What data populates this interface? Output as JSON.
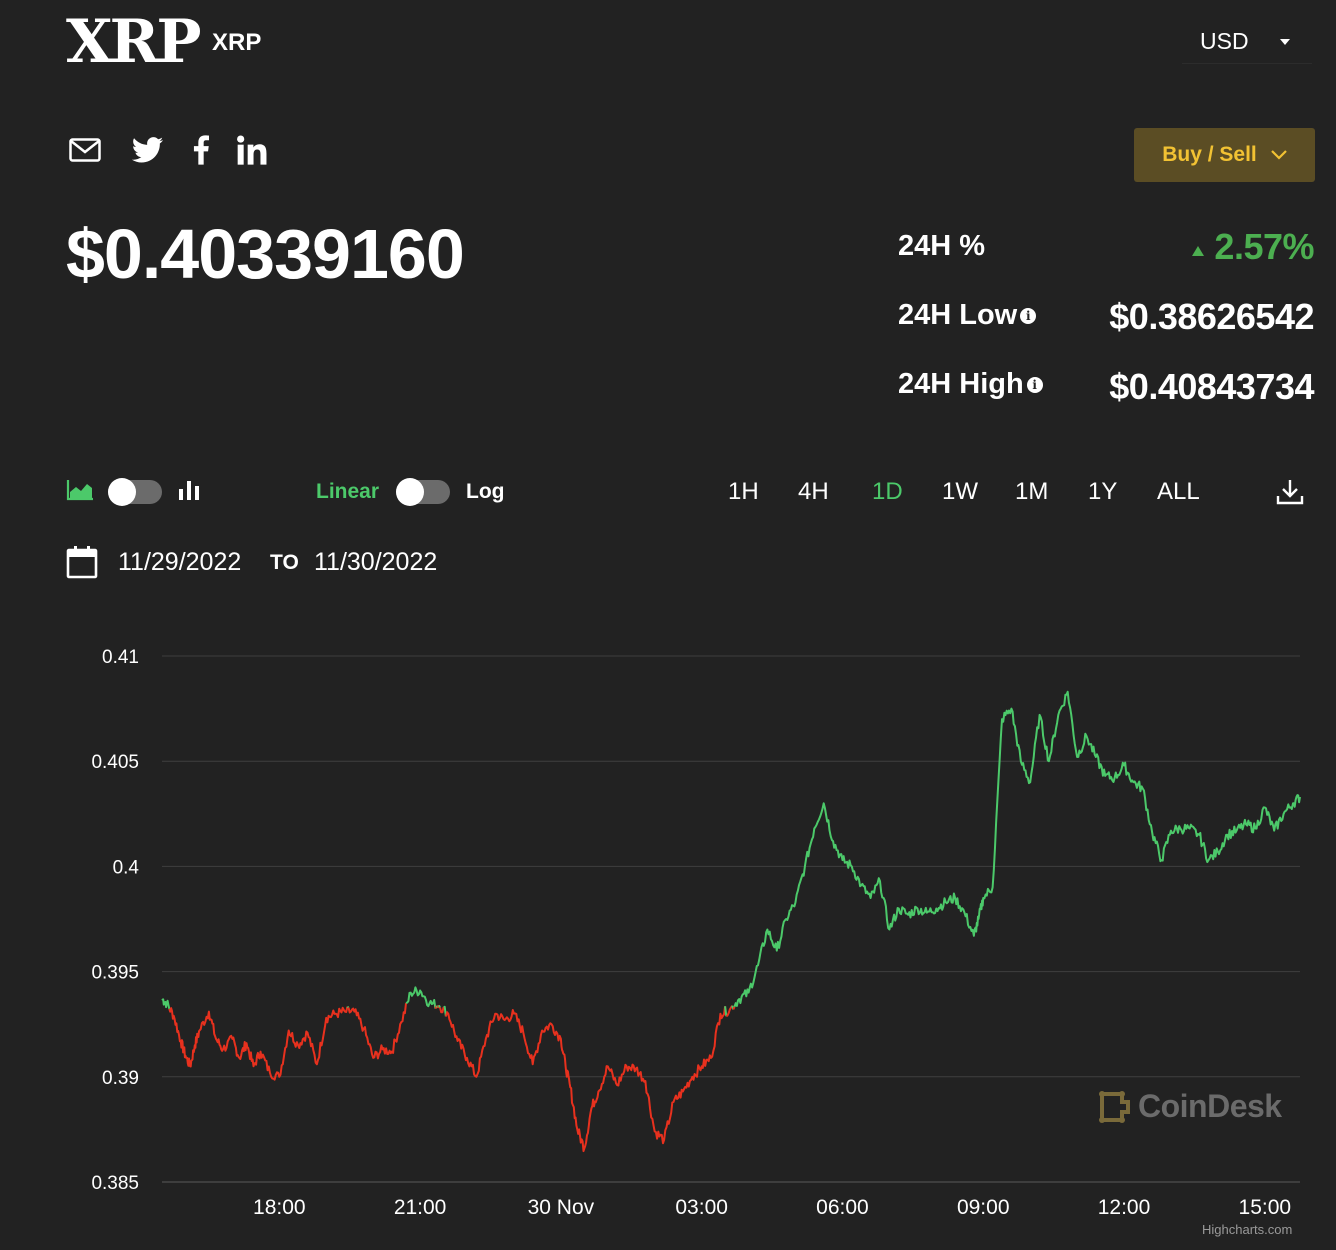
{
  "header": {
    "logo_text": "XRP",
    "asset_name": "XRP",
    "currency": "USD"
  },
  "share": [
    "mail-icon",
    "twitter-icon",
    "facebook-icon",
    "linkedin-icon"
  ],
  "buy_sell_label": "Buy / Sell",
  "price": "$0.40339160",
  "stats": {
    "change_label": "24H %",
    "change_value": "2.57%",
    "low_label": "24H Low",
    "low_value": "$0.38626542",
    "high_label": "24H High",
    "high_value": "$0.40843734"
  },
  "controls": {
    "linear_label": "Linear",
    "log_label": "Log",
    "ranges": [
      "1H",
      "4H",
      "1D",
      "1W",
      "1M",
      "1Y",
      "ALL"
    ],
    "active_range": "1D",
    "date_from": "11/29/2022",
    "date_to_label": "TO",
    "date_to": "11/30/2022"
  },
  "colors": {
    "up": "#4cc96a",
    "down": "#e8311e",
    "accent_gold": "#f2c233"
  },
  "chart_data": {
    "type": "line",
    "title": "",
    "xlabel": "",
    "ylabel": "",
    "y_ticks": [
      "0.41",
      "0.405",
      "0.4",
      "0.395",
      "0.39",
      "0.385"
    ],
    "ylim": [
      0.385,
      0.41
    ],
    "x_ticks": [
      "18:00",
      "21:00",
      "30 Nov",
      "03:00",
      "06:00",
      "09:00",
      "12:00",
      "15:00"
    ],
    "x_tick_hours": [
      18,
      21,
      24,
      27,
      30,
      33,
      36,
      39
    ],
    "xlim_hours": [
      15.5,
      39.75
    ],
    "baseline": 0.3933,
    "grid": true,
    "legend": "none",
    "series": [
      {
        "x_hours": [
          15.5,
          15.6,
          15.75,
          15.9,
          16.0,
          16.1,
          16.2,
          16.3,
          16.5,
          16.65,
          16.8,
          17.0,
          17.15,
          17.3,
          17.45,
          17.6,
          17.8,
          18.0,
          18.2,
          18.4,
          18.6,
          18.8,
          19.0,
          19.2,
          19.4,
          19.6,
          19.8,
          20.0,
          20.2,
          20.4,
          20.6,
          20.8,
          21.0,
          21.2,
          21.4,
          21.6,
          21.8,
          22.0,
          22.2,
          22.4,
          22.6,
          22.8,
          23.0,
          23.2,
          23.4,
          23.6,
          23.8,
          24.0,
          24.1,
          24.2,
          24.35,
          24.5,
          24.65,
          24.8,
          25.0,
          25.2,
          25.4,
          25.6,
          25.8,
          26.0,
          26.2,
          26.4,
          26.6,
          26.8,
          27.0,
          27.2,
          27.4,
          27.6,
          27.8,
          28.0,
          28.2,
          28.4,
          28.6,
          28.8,
          29.0,
          29.2,
          29.4,
          29.6,
          29.8,
          30.0,
          30.2,
          30.4,
          30.6,
          30.8,
          31.0,
          31.2,
          31.4,
          31.6,
          31.8,
          32.0,
          32.2,
          32.4,
          32.6,
          32.8,
          32.9,
          33.0,
          33.2,
          33.4,
          33.6,
          33.8,
          34.0,
          34.2,
          34.4,
          34.6,
          34.8,
          35.0,
          35.2,
          35.4,
          35.6,
          35.8,
          36.0,
          36.2,
          36.4,
          36.6,
          36.8,
          37.0,
          37.2,
          37.4,
          37.6,
          37.8,
          38.0,
          38.2,
          38.4,
          38.6,
          38.8,
          39.0,
          39.2,
          39.4,
          39.6,
          39.75
        ],
        "values": [
          0.3937,
          0.3935,
          0.3929,
          0.3917,
          0.391,
          0.3905,
          0.3915,
          0.3922,
          0.3931,
          0.3918,
          0.3913,
          0.3918,
          0.3909,
          0.3916,
          0.3905,
          0.3912,
          0.3902,
          0.39,
          0.3922,
          0.3915,
          0.3921,
          0.3906,
          0.3928,
          0.393,
          0.3931,
          0.3931,
          0.3923,
          0.3909,
          0.3913,
          0.3912,
          0.3926,
          0.394,
          0.3941,
          0.3935,
          0.3934,
          0.393,
          0.3917,
          0.3909,
          0.39,
          0.3918,
          0.393,
          0.3927,
          0.393,
          0.3921,
          0.3906,
          0.3922,
          0.3925,
          0.3918,
          0.3905,
          0.3895,
          0.3875,
          0.3866,
          0.3885,
          0.3893,
          0.3905,
          0.3896,
          0.3905,
          0.3904,
          0.3898,
          0.3874,
          0.387,
          0.3888,
          0.3893,
          0.39,
          0.3905,
          0.3909,
          0.393,
          0.3932,
          0.3937,
          0.394,
          0.3953,
          0.397,
          0.396,
          0.3975,
          0.3983,
          0.4,
          0.4018,
          0.403,
          0.4012,
          0.4003,
          0.4,
          0.3991,
          0.3985,
          0.3993,
          0.397,
          0.398,
          0.3977,
          0.398,
          0.3978,
          0.398,
          0.3983,
          0.3985,
          0.3978,
          0.3967,
          0.3975,
          0.3985,
          0.399,
          0.407,
          0.4075,
          0.405,
          0.404,
          0.4072,
          0.405,
          0.4072,
          0.4083,
          0.4052,
          0.4062,
          0.4052,
          0.4043,
          0.4042,
          0.4048,
          0.404,
          0.4037,
          0.4016,
          0.4003,
          0.4017,
          0.4018,
          0.4018,
          0.4015,
          0.4003,
          0.4007,
          0.4015,
          0.4017,
          0.402,
          0.4018,
          0.4028,
          0.4017,
          0.4025,
          0.403,
          0.4033
        ]
      }
    ]
  },
  "watermark": "CoinDesk",
  "credit": "Highcharts.com"
}
